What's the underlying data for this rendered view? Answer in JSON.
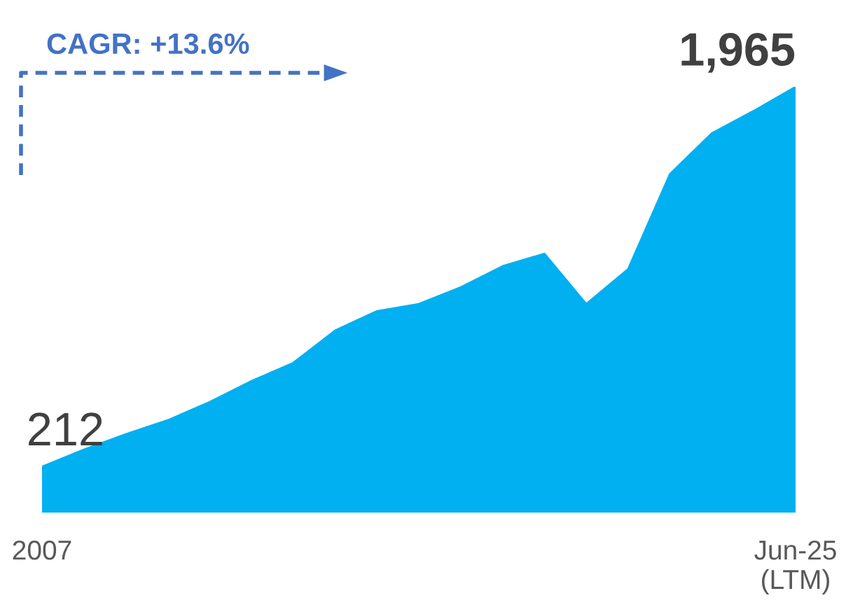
{
  "chart_data": {
    "type": "area",
    "categories": [
      "2007",
      null,
      null,
      null,
      null,
      null,
      null,
      null,
      null,
      null,
      null,
      null,
      null,
      null,
      null,
      null,
      null,
      null,
      "Jun-25\n(LTM)"
    ],
    "series": [
      {
        "color": "#00b0f0",
        "values": [
          212,
          291,
          362,
          426,
          510,
          607,
          691,
          840,
          930,
          963,
          1040,
          1137,
          1195,
          963,
          1124,
          1563,
          1751,
          1854,
          1965
        ],
        "value_labels": [
          "212",
          null,
          null,
          null,
          null,
          null,
          null,
          null,
          null,
          null,
          null,
          null,
          null,
          null,
          null,
          null,
          null,
          null,
          "1,965"
        ]
      }
    ],
    "annotations": [
      "CAGR: +13.6%"
    ],
    "grid": false,
    "legend": false
  }
}
